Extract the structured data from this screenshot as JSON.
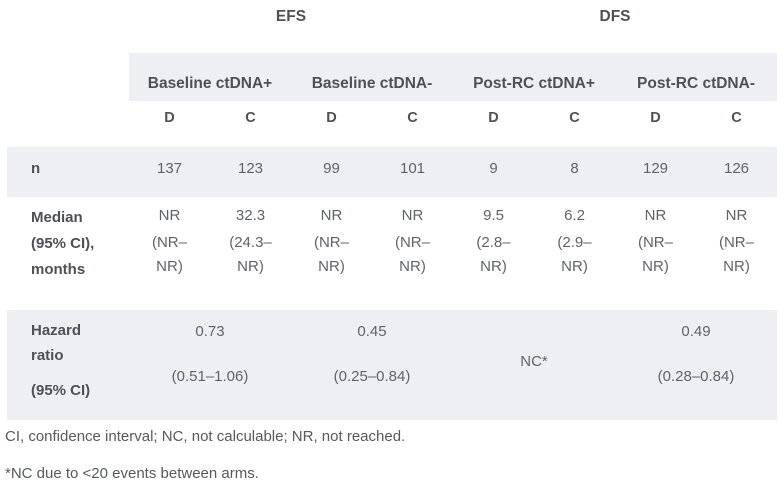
{
  "colors": {
    "band": "#edeff3",
    "heading": "#4d5156",
    "text": "#5f6368",
    "footnote": "#56595d"
  },
  "table": {
    "superheaders": [
      {
        "label": "EFS"
      },
      {
        "label": "DFS"
      }
    ],
    "groups": [
      "Baseline ctDNA+",
      "Baseline ctDNA-",
      "Post-RC ctDNA+",
      "Post-RC ctDNA-"
    ],
    "arms": [
      "D",
      "C",
      "D",
      "C",
      "D",
      "C",
      "D",
      "C"
    ],
    "rows": {
      "n": {
        "label": "n",
        "values": [
          "137",
          "123",
          "99",
          "101",
          "9",
          "8",
          "129",
          "126"
        ]
      },
      "median": {
        "label": "Median\n(95% CI),\nmonths",
        "cells": [
          {
            "value": "NR",
            "ci": "(NR–\nNR)"
          },
          {
            "value": "32.3",
            "ci": "(24.3–\nNR)"
          },
          {
            "value": "NR",
            "ci": "(NR–\nNR)"
          },
          {
            "value": "NR",
            "ci": "(NR–\nNR)"
          },
          {
            "value": "9.5",
            "ci": "(2.8–\nNR)"
          },
          {
            "value": "6.2",
            "ci": "(2.9–\nNR)"
          },
          {
            "value": "NR",
            "ci": "(NR–\nNR)"
          },
          {
            "value": "NR",
            "ci": "(NR–\nNR)"
          }
        ]
      },
      "hazard": {
        "label_line1": "Hazard\nratio",
        "label_line2": "(95% CI)",
        "cells": [
          {
            "value": "0.73",
            "ci": "(0.51–1.06)"
          },
          {
            "value": "0.45",
            "ci": "(0.25–0.84)"
          },
          {
            "value": "NC*",
            "ci": ""
          },
          {
            "value": "0.49",
            "ci": "(0.28–0.84)"
          }
        ]
      }
    },
    "footnotes": [
      "CI, confidence interval; NC, not calculable; NR, not reached.",
      "*NC due to <20 events between arms."
    ]
  },
  "chart_data": {
    "type": "table",
    "title": "",
    "column_groups": [
      "EFS",
      "DFS"
    ],
    "columns": [
      "Baseline ctDNA+ D",
      "Baseline ctDNA+ C",
      "Baseline ctDNA- D",
      "Baseline ctDNA- C",
      "Post-RC ctDNA+ D",
      "Post-RC ctDNA+ C",
      "Post-RC ctDNA- D",
      "Post-RC ctDNA- C"
    ],
    "rows": [
      {
        "label": "n",
        "values": [
          137,
          123,
          99,
          101,
          9,
          8,
          129,
          126
        ]
      },
      {
        "label": "Median (95% CI), months",
        "values": [
          "NR (NR–NR)",
          "32.3 (24.3–NR)",
          "NR (NR–NR)",
          "NR (NR–NR)",
          "9.5 (2.8–NR)",
          "6.2 (2.9–NR)",
          "NR (NR–NR)",
          "NR (NR–NR)"
        ]
      },
      {
        "label": "Hazard ratio (95% CI)",
        "values": [
          "0.73 (0.51–1.06)",
          "0.45 (0.25–0.84)",
          "NC*",
          "0.49 (0.28–0.84)"
        ]
      }
    ]
  }
}
